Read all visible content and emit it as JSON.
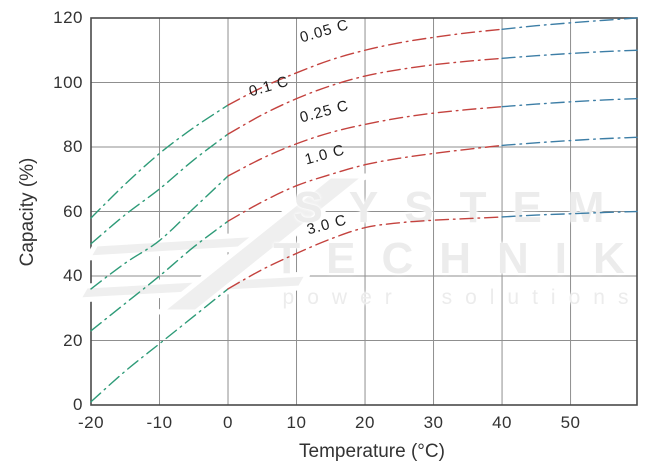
{
  "watermark": {
    "line1": "SYSTEM",
    "line2": "TECHNIK",
    "line3": "power solutions"
  },
  "colors": {
    "cold_segment": "#2E9B78",
    "mid_segment": "#C4423E",
    "hot_segment": "#3D7EA6",
    "grid": "#8f8f8f",
    "border": "#4a4a4a",
    "text": "#333333",
    "curve_label": "#1d1d1d",
    "watermark": "#ececec"
  },
  "chart_data": {
    "type": "line",
    "title": "",
    "xlabel": "Temperature (°C)",
    "ylabel": "Capacity (%)",
    "xlim": [
      -20,
      59.7
    ],
    "ylim": [
      0,
      120
    ],
    "x_ticks": [
      -20,
      -10,
      0,
      10,
      20,
      30,
      40,
      50
    ],
    "y_ticks": [
      0,
      20,
      40,
      60,
      80,
      100,
      120
    ],
    "grid": true,
    "legend": "inline curve labels",
    "line_style": "dash-dot",
    "color_zones": [
      {
        "t_range": [
          -20,
          0
        ],
        "color": "#2E9B78"
      },
      {
        "t_range": [
          0,
          40
        ],
        "color": "#C4423E"
      },
      {
        "t_range": [
          40,
          59.7
        ],
        "color": "#3D7EA6"
      }
    ],
    "x": [
      -20,
      -15,
      -10,
      -5,
      0,
      5,
      10,
      15,
      20,
      25,
      30,
      35,
      40,
      45,
      50,
      55,
      59.7
    ],
    "series": [
      {
        "name": "0.05 C",
        "values": [
          58,
          68.5,
          78,
          86,
          93,
          98.5,
          103,
          107,
          110,
          112.3,
          114,
          115.4,
          116.5,
          117.6,
          118.5,
          119.3,
          120
        ]
      },
      {
        "name": "0.1 C",
        "values": [
          50,
          59,
          67,
          76,
          84,
          90,
          95,
          99,
          102,
          104,
          105.5,
          106.6,
          107.5,
          108.3,
          109,
          109.6,
          110
        ]
      },
      {
        "name": "0.25 C",
        "values": [
          36,
          44,
          51,
          61,
          71,
          76.5,
          81,
          84.5,
          87,
          89,
          90.5,
          91.6,
          92.5,
          93.3,
          94,
          94.6,
          95
        ]
      },
      {
        "name": "1.0 C",
        "values": [
          23,
          31.5,
          40,
          49,
          57,
          63,
          68,
          71.5,
          74.5,
          76.5,
          78,
          79.3,
          80.5,
          81.3,
          82,
          82.6,
          83
        ]
      },
      {
        "name": "3.0 C",
        "values": [
          1,
          10.5,
          19,
          27.5,
          36,
          42,
          47,
          51.5,
          55,
          56.5,
          57.3,
          57.8,
          58.3,
          58.9,
          59.3,
          59.7,
          60
        ]
      }
    ],
    "series_labels": [
      {
        "text": "0.05 C",
        "t": 10.2,
        "c": 116.3,
        "rotate": -16
      },
      {
        "text": "0.1 C",
        "t": 2.8,
        "c": 99.5,
        "rotate": -16
      },
      {
        "text": "0.25 C",
        "t": 10.2,
        "c": 91.5,
        "rotate": -15
      },
      {
        "text": "1.0 C",
        "t": 10.9,
        "c": 78.4,
        "rotate": -15
      },
      {
        "text": "3.0 C",
        "t": 11.2,
        "c": 56.7,
        "rotate": -15
      }
    ]
  }
}
